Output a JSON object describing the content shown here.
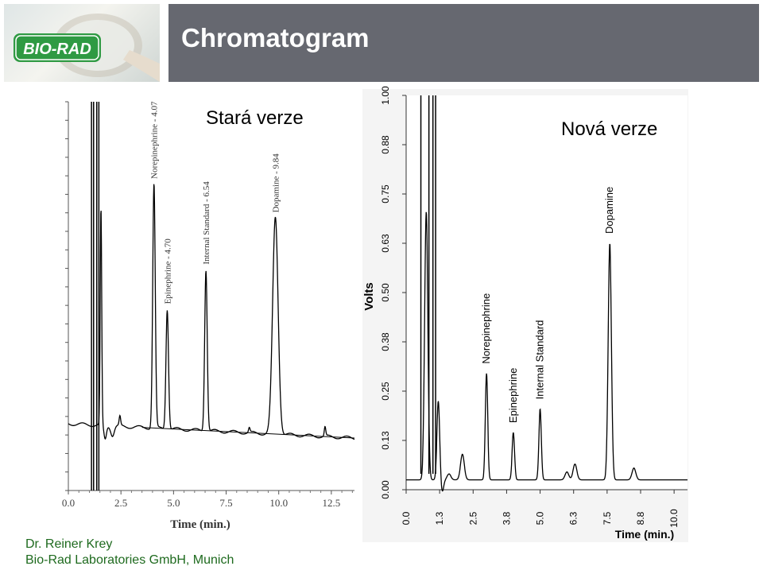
{
  "header": {
    "title": "Chromatogram",
    "logo_text": "BIO-RAD"
  },
  "footer": {
    "line1": "Dr. Reiner Krey",
    "line2": "Bio-Rad Laboratories GmbH, Munich"
  },
  "colors": {
    "title_bar": "#666870",
    "logo_green": "#2f9a43",
    "footer_text": "#1e6a1e",
    "trace": "#000000"
  },
  "chart_data": [
    {
      "type": "line",
      "title": "Stará verze",
      "xlabel": "Time (min.)",
      "ylabel": "",
      "xlim": [
        0,
        13.6
      ],
      "x_ticks": [
        "0.0",
        "2.5",
        "5.0",
        "7.5",
        "10.0",
        "12.5"
      ],
      "x_tick_values": [
        0,
        2.5,
        5,
        7.5,
        10,
        12.5
      ],
      "peaks": [
        {
          "label": "Norepinephrine - 4.07",
          "time": 4.07,
          "height": 0.53
        },
        {
          "label": "Epinephrine - 4.70",
          "time": 4.7,
          "height": 0.26
        },
        {
          "label": "Internal Standard - 6.54",
          "time": 6.54,
          "height": 0.35
        },
        {
          "label": "Dopamine - 9.84",
          "time": 9.84,
          "height": 0.47
        }
      ],
      "minor_peaks": [
        {
          "time": 1.55,
          "height": 0.47
        },
        {
          "time": 2.45,
          "height": 0.02
        },
        {
          "time": 8.6,
          "height": 0.01
        },
        {
          "time": 12.2,
          "height": 0.02
        }
      ],
      "solvent_front_times": [
        1.1,
        1.2,
        1.35,
        1.45
      ]
    },
    {
      "type": "line",
      "title": "Nová verze",
      "xlabel": "Time (min.)",
      "ylabel": "Volts",
      "xlim": [
        0,
        10.5
      ],
      "ylim": [
        0,
        1.0
      ],
      "x_ticks": [
        "0.0",
        "1.3",
        "2.5",
        "3.8",
        "5.0",
        "6.3",
        "7.5",
        "8.8",
        "10.0"
      ],
      "x_tick_values": [
        0,
        1.25,
        2.5,
        3.75,
        5.0,
        6.25,
        7.5,
        8.75,
        10.0
      ],
      "y_ticks": [
        "0.00",
        "0.13",
        "0.25",
        "0.38",
        "0.50",
        "0.63",
        "0.75",
        "0.88",
        "1.00"
      ],
      "y_tick_values": [
        0,
        0.125,
        0.25,
        0.375,
        0.5,
        0.625,
        0.75,
        0.875,
        1.0
      ],
      "baseline": 0.025,
      "peaks": [
        {
          "label": "Norepinephrine",
          "time": 3.0,
          "height": 0.27
        },
        {
          "label": "Epinephrine",
          "time": 4.0,
          "height": 0.12
        },
        {
          "label": "Internal Standard",
          "time": 5.0,
          "height": 0.18
        },
        {
          "label": "Dopamine",
          "time": 7.6,
          "height": 0.6
        }
      ],
      "minor_peaks": [
        {
          "time": 1.6,
          "height": 0.015
        },
        {
          "time": 2.1,
          "height": 0.065
        },
        {
          "time": 6.0,
          "height": 0.02
        },
        {
          "time": 6.3,
          "height": 0.04
        },
        {
          "time": 8.5,
          "height": 0.03
        }
      ],
      "solvent_front_times": [
        0.55,
        0.85,
        1.0,
        1.1
      ]
    }
  ]
}
